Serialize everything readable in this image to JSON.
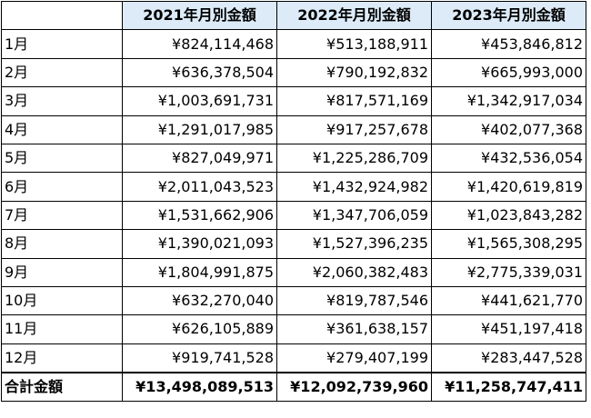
{
  "header": {
    "corner": "",
    "columns": [
      "2021年月別金額",
      "2022年月別金額",
      "2023年月別金額"
    ]
  },
  "colors": {
    "header_bg": "#dcebf7",
    "border": "#000000"
  },
  "rows": [
    {
      "month": "1月",
      "values": [
        "¥824,114,468",
        "¥513,188,911",
        "¥453,846,812"
      ]
    },
    {
      "month": "2月",
      "values": [
        "¥636,378,504",
        "¥790,192,832",
        "¥665,993,000"
      ]
    },
    {
      "month": "3月",
      "values": [
        "¥1,003,691,731",
        "¥817,571,169",
        "¥1,342,917,034"
      ]
    },
    {
      "month": "4月",
      "values": [
        "¥1,291,017,985",
        "¥917,257,678",
        "¥402,077,368"
      ]
    },
    {
      "month": "5月",
      "values": [
        "¥827,049,971",
        "¥1,225,286,709",
        "¥432,536,054"
      ]
    },
    {
      "month": "6月",
      "values": [
        "¥2,011,043,523",
        "¥1,432,924,982",
        "¥1,420,619,819"
      ]
    },
    {
      "month": "7月",
      "values": [
        "¥1,531,662,906",
        "¥1,347,706,059",
        "¥1,023,843,282"
      ]
    },
    {
      "month": "8月",
      "values": [
        "¥1,390,021,093",
        "¥1,527,396,235",
        "¥1,565,308,295"
      ]
    },
    {
      "month": "9月",
      "values": [
        "¥1,804,991,875",
        "¥2,060,382,483",
        "¥2,775,339,031"
      ]
    },
    {
      "month": "10月",
      "values": [
        "¥632,270,040",
        "¥819,787,546",
        "¥441,621,770"
      ]
    },
    {
      "month": "11月",
      "values": [
        "¥626,105,889",
        "¥361,638,157",
        "¥451,197,418"
      ]
    },
    {
      "month": "12月",
      "values": [
        "¥919,741,528",
        "¥279,407,199",
        "¥283,447,528"
      ]
    }
  ],
  "total": {
    "label": "合計金額",
    "values": [
      "¥13,498,089,513",
      "¥12,092,739,960",
      "¥11,258,747,411"
    ]
  }
}
